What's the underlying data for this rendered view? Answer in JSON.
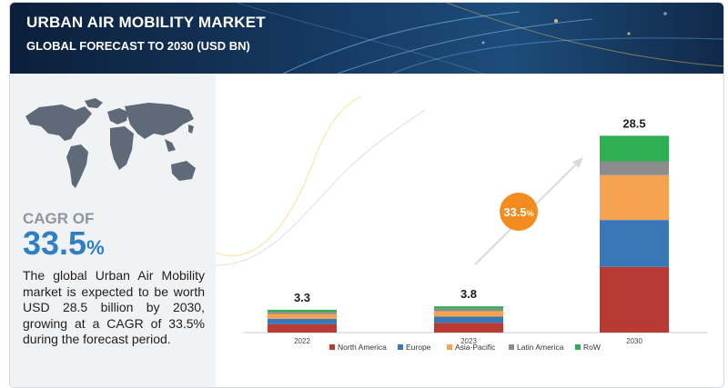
{
  "header": {
    "title": "URBAN AIR MOBILITY MARKET",
    "subtitle": "GLOBAL FORECAST TO 2030 (USD BN)"
  },
  "left_panel": {
    "cagr_label": "CAGR OF",
    "cagr_number": "33.5",
    "cagr_percent": "%",
    "description": "The global Urban Air Mobility market is expected to be worth USD 28.5 billion by 2030, growing at a CAGR of 33.5% during the forecast period.",
    "map_icon": "world-map-icon"
  },
  "chart_data": {
    "type": "bar",
    "stacked": true,
    "categories": [
      "2022",
      "2023",
      "2030"
    ],
    "totals_labels": [
      "3.3",
      "3.8",
      "28.5"
    ],
    "totals": [
      3.3,
      3.8,
      28.5
    ],
    "series": [
      {
        "name": "North America",
        "color": "#b83a33",
        "values": [
          1.2,
          1.4,
          9.5
        ]
      },
      {
        "name": "Europe",
        "color": "#3a77b9",
        "values": [
          0.8,
          0.9,
          6.8
        ]
      },
      {
        "name": "Asia-Pacific",
        "color": "#f5a350",
        "values": [
          0.7,
          0.8,
          6.5
        ]
      },
      {
        "name": "Latin America",
        "color": "#8c8c8c",
        "values": [
          0.3,
          0.35,
          2.0
        ]
      },
      {
        "name": "RoW",
        "color": "#2eaf52",
        "values": [
          0.3,
          0.35,
          3.7
        ]
      }
    ],
    "cagr_badge": {
      "number": "33.5",
      "percent": "%",
      "color": "#f28c1e"
    },
    "legend_position": "bottom",
    "grid": false,
    "ylim": [
      0,
      30
    ]
  }
}
